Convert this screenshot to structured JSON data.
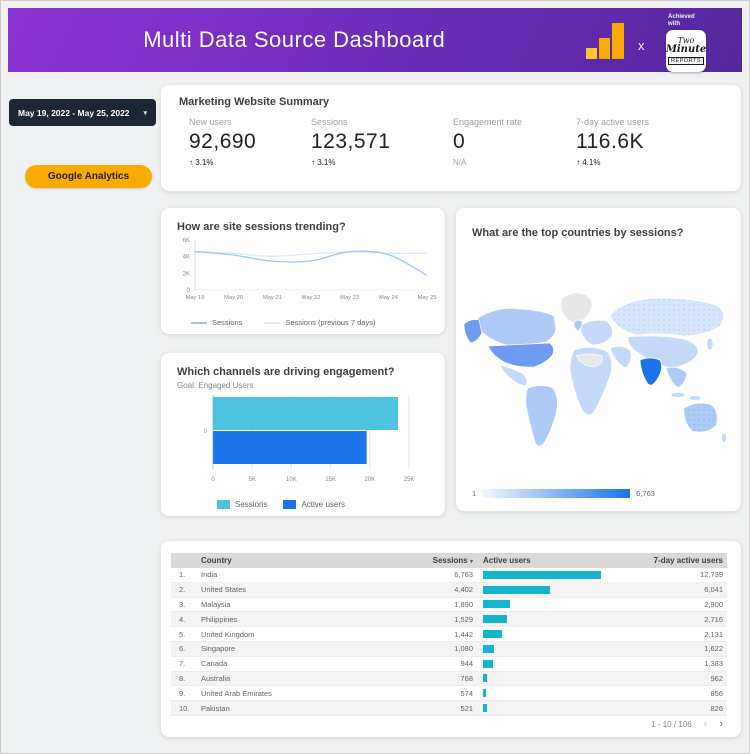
{
  "colors": {
    "header-grad-start": "#8d33d4",
    "header-grad-mid": "#6b2cb8",
    "header-grad-end": "#55279e",
    "amber": "#F9AB00",
    "ga-yellow-light": "#FFC62B",
    "dark-pill": "#1C2733",
    "cyan": "#4EC3E0",
    "blue": "#1A73E8",
    "table-bar": "#12B5CB",
    "line-sessions": "#9FC5EF",
    "line-previous": "#D9E8FA",
    "map-nodata": "#e6e7e9",
    "map-l1": "#d6e5fc",
    "map-l2": "#c4d9fa",
    "map-l3": "#aecbf8",
    "map-l4": "#6d9cf2",
    "map-dark": "#1A73E8"
  },
  "header": {
    "title": "Multi Data Source Dashboard",
    "separator": "x",
    "logo_caption": "Achieved\nwith",
    "logo_line1": "Two",
    "logo_line2": "Minute",
    "logo_line3": "REPORTS"
  },
  "controls": {
    "date_range": "May 19, 2022 - May 25, 2022",
    "date_caret": "▾",
    "source_button": "Google Analytics"
  },
  "summary": {
    "title": "Marketing Website Summary",
    "metrics": [
      {
        "label": "New users",
        "value": "92,690",
        "arrow": "↑",
        "delta": "3.1%"
      },
      {
        "label": "Sessions",
        "value": "123,571",
        "arrow": "↑",
        "delta": "3.1%"
      },
      {
        "label": "Engagement rate",
        "value": "0",
        "arrow": "",
        "delta": "N/A"
      },
      {
        "label": "7-day active users",
        "value": "116.6K",
        "arrow": "↑",
        "delta": "4.1%"
      }
    ]
  },
  "chart_data": [
    {
      "id": "sessions_trend",
      "type": "line",
      "title": "How are site sessions trending?",
      "x": [
        "May 19",
        "May 20",
        "May 21",
        "May 22",
        "May 23",
        "May 24",
        "May 25"
      ],
      "series": [
        {
          "name": "Sessions (previous 7 days)",
          "color_key": "line-previous",
          "values": [
            4650,
            4400,
            4050,
            4350,
            4550,
            4400,
            4400
          ]
        },
        {
          "name": "Sessions",
          "color_key": "line-sessions",
          "values": [
            4600,
            4200,
            3450,
            3500,
            4600,
            4250,
            1750
          ]
        }
      ],
      "legend_order": [
        "Sessions",
        "Sessions (previous 7 days)"
      ],
      "ylim": [
        0,
        6000
      ],
      "yticks": [
        {
          "v": 0,
          "label": "0"
        },
        {
          "v": 2000,
          "label": "2K"
        },
        {
          "v": 4000,
          "label": "4K"
        },
        {
          "v": 6000,
          "label": "6K"
        }
      ],
      "legend_position": "bottom"
    },
    {
      "id": "channels_engagement",
      "type": "bar",
      "title": "Which channels are driving engagement?",
      "subtitle": "Goal: Engaged Users",
      "categories": [
        "0"
      ],
      "series": [
        {
          "name": "Sessions",
          "color_key": "cyan",
          "values": [
            23600
          ]
        },
        {
          "name": "Active users",
          "color_key": "blue",
          "values": [
            19600
          ]
        }
      ],
      "xlim": [
        0,
        25000
      ],
      "xticks": [
        {
          "v": 0,
          "label": "0"
        },
        {
          "v": 5000,
          "label": "5K"
        },
        {
          "v": 10000,
          "label": "10K"
        },
        {
          "v": 15000,
          "label": "15K"
        },
        {
          "v": 20000,
          "label": "20K"
        },
        {
          "v": 25000,
          "label": "25K"
        }
      ],
      "grid": true,
      "legend_position": "bottom"
    },
    {
      "id": "countries_map",
      "type": "choropleth",
      "title": "What are the top countries by sessions?",
      "legend_min": "1",
      "legend_max": "6,763",
      "highlights": {
        "darkest": "India",
        "medium": "United States"
      }
    },
    {
      "id": "countries_table",
      "type": "table",
      "columns": {
        "country": "Country",
        "sessions": "Sessions",
        "active": "Active users",
        "seven_day": "7-day active users"
      },
      "sort_icon": "▾",
      "rows": [
        {
          "rank": "1.",
          "country": "India",
          "sessions": "6,763",
          "active_bar_pct": 84,
          "seven_day": "12,739"
        },
        {
          "rank": "2.",
          "country": "United States",
          "sessions": "4,402",
          "active_bar_pct": 48,
          "seven_day": "6,041"
        },
        {
          "rank": "3.",
          "country": "Malaysia",
          "sessions": "1,890",
          "active_bar_pct": 19.5,
          "seven_day": "2,900"
        },
        {
          "rank": "4.",
          "country": "Philippines",
          "sessions": "1,529",
          "active_bar_pct": 17,
          "seven_day": "2,716"
        },
        {
          "rank": "5.",
          "country": "United Kingdom",
          "sessions": "1,442",
          "active_bar_pct": 13.5,
          "seven_day": "2,131"
        },
        {
          "rank": "6.",
          "country": "Singapore",
          "sessions": "1,080",
          "active_bar_pct": 7.5,
          "seven_day": "1,622"
        },
        {
          "rank": "7.",
          "country": "Canada",
          "sessions": "944",
          "active_bar_pct": 7,
          "seven_day": "1,383"
        },
        {
          "rank": "8.",
          "country": "Australia",
          "sessions": "768",
          "active_bar_pct": 3,
          "seven_day": "962"
        },
        {
          "rank": "9.",
          "country": "United Arab Emirates",
          "sessions": "574",
          "active_bar_pct": 2.4,
          "seven_day": "856"
        },
        {
          "rank": "10.",
          "country": "Pakistan",
          "sessions": "521",
          "active_bar_pct": 2.6,
          "seven_day": "826"
        }
      ],
      "pagination": {
        "range": "1 - 10 / 106",
        "prev": "‹",
        "next": "›"
      }
    }
  ]
}
